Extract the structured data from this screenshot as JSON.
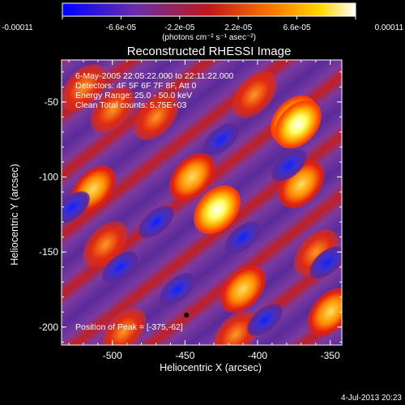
{
  "chart_data": {
    "type": "heatmap",
    "title": "Reconstructed RHESSI Image",
    "xlabel": "Heliocentric X (arcsec)",
    "ylabel": "Heliocentric Y (arcsec)",
    "xlim": [
      -535,
      -342
    ],
    "ylim": [
      -212,
      -22
    ],
    "x_ticks": [
      -500,
      -450,
      -400,
      -350
    ],
    "x_tick_labels": [
      "-500",
      "-450",
      "-400",
      "-350"
    ],
    "y_ticks": [
      -50,
      -100,
      -150,
      -200
    ],
    "y_tick_labels": [
      "-50",
      "-100",
      "-150",
      "-200"
    ],
    "colorbar": {
      "range": [
        -0.00011,
        0.00011
      ],
      "tick_values": [
        -0.00011,
        -6.6e-05,
        -2.2e-05,
        2.2e-05,
        6.6e-05,
        0.00011
      ],
      "tick_labels": [
        "-0.00011",
        "-6.6e-05",
        "-2.2e-05",
        "2.2e-05",
        "6.6e-05",
        "0.00011"
      ],
      "units_label": "(photons cm⁻² s⁻¹ asec⁻²)",
      "colors": [
        "#0000ff",
        "#6a2ea8",
        "#c01818",
        "#ff7a00",
        "#ffd800",
        "#ffffff"
      ]
    },
    "annotations": [
      "6-May-2005 22:05:22.000 to 22:11:22.000",
      "Detectors: 4F 5F 6F 7F 8F, Att 0",
      "Energy Range: 25.0 - 50.0 keV",
      "Clean    Total counts: 5.75E+03"
    ],
    "peak_label": "Position of Peak = [-375,-62]",
    "peak": [
      -375,
      -62
    ],
    "marker_point": [
      -449,
      -192
    ],
    "hotspots": [
      {
        "x": -428,
        "y": -122,
        "level": 1.0
      },
      {
        "x": -375,
        "y": -62,
        "level": 1.0
      },
      {
        "x": -372,
        "y": -65,
        "level": 0.95
      },
      {
        "x": -370,
        "y": -105,
        "level": 0.8
      },
      {
        "x": -445,
        "y": -100,
        "level": 0.8
      },
      {
        "x": -402,
        "y": -45,
        "level": 0.6
      },
      {
        "x": -513,
        "y": -108,
        "level": 0.7
      },
      {
        "x": -470,
        "y": -60,
        "level": 0.55
      },
      {
        "x": -520,
        "y": -40,
        "level": 0.6
      },
      {
        "x": -505,
        "y": -145,
        "level": 0.6
      },
      {
        "x": -500,
        "y": -55,
        "level": 0.55
      },
      {
        "x": -360,
        "y": -150,
        "level": 0.55
      },
      {
        "x": -410,
        "y": -175,
        "level": 0.75
      },
      {
        "x": -350,
        "y": -190,
        "level": 0.75
      },
      {
        "x": -415,
        "y": -205,
        "level": 0.65
      },
      {
        "x": -492,
        "y": -203,
        "level": 0.5
      }
    ],
    "coldspots": [
      {
        "x": -352,
        "y": -157,
        "level": -0.8
      },
      {
        "x": -378,
        "y": -92,
        "level": -0.6
      },
      {
        "x": -455,
        "y": -175,
        "level": -0.75
      },
      {
        "x": -495,
        "y": -160,
        "level": -0.6
      },
      {
        "x": -425,
        "y": -75,
        "level": -0.55
      },
      {
        "x": -410,
        "y": -140,
        "level": -0.5
      },
      {
        "x": -470,
        "y": -130,
        "level": -0.5
      },
      {
        "x": -528,
        "y": -120,
        "level": -0.55
      },
      {
        "x": -395,
        "y": -195,
        "level": -0.5
      }
    ]
  },
  "footer": {
    "timestamp": "4-Jul-2013 20:23"
  }
}
